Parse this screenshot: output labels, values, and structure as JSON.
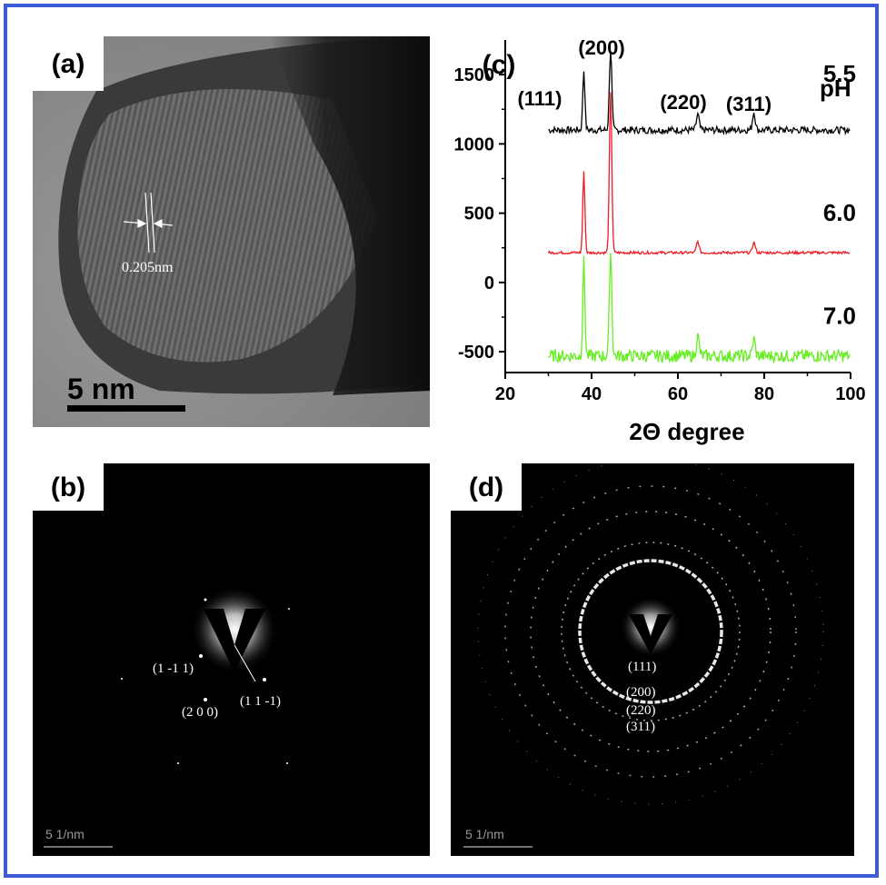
{
  "panels": {
    "a": {
      "tag": "(a)",
      "spacing_label": "0.205nm",
      "scale_label": "5 nm"
    },
    "b": {
      "tag": "(b)",
      "spots": [
        "(1 -1 1)",
        "(1 1 -1)",
        "(2 0 0)"
      ],
      "scale_label": "5 1/nm"
    },
    "c": {
      "tag": "(c)",
      "ph_label": "pH",
      "peak_labels": [
        "(111)",
        "(200)",
        "(220)",
        "(311)"
      ]
    },
    "d": {
      "tag": "(d)",
      "rings": [
        "(111)",
        "(200)",
        "(220)",
        "(311)"
      ],
      "scale_label": "5 1/nm"
    }
  },
  "chart_data": {
    "type": "line",
    "title": "",
    "xlabel": "2Θ degree",
    "ylabel": "",
    "xlim": [
      20,
      100
    ],
    "ylim": [
      -650,
      1750
    ],
    "xticks": [
      20,
      40,
      60,
      80,
      100
    ],
    "yticks": [
      -500,
      0,
      500,
      1000,
      1500
    ],
    "legend_title": "pH",
    "peaks": [
      {
        "label": "(111)",
        "x": 38.2
      },
      {
        "label": "(200)",
        "x": 44.4
      },
      {
        "label": "(220)",
        "x": 64.6
      },
      {
        "label": "(311)",
        "x": 77.6
      }
    ],
    "series": [
      {
        "name": "5.5",
        "color": "#000000",
        "baseline": 1100,
        "noise": 25,
        "peak_heights": [
          430,
          580,
          110,
          130
        ]
      },
      {
        "name": "6.0",
        "color": "#ee1c24",
        "baseline": 215,
        "noise": 10,
        "peak_heights": [
          580,
          1150,
          80,
          75
        ]
      },
      {
        "name": "7.0",
        "color": "#66ee22",
        "baseline": -530,
        "noise": 45,
        "peak_heights": [
          680,
          750,
          140,
          120
        ]
      }
    ]
  }
}
